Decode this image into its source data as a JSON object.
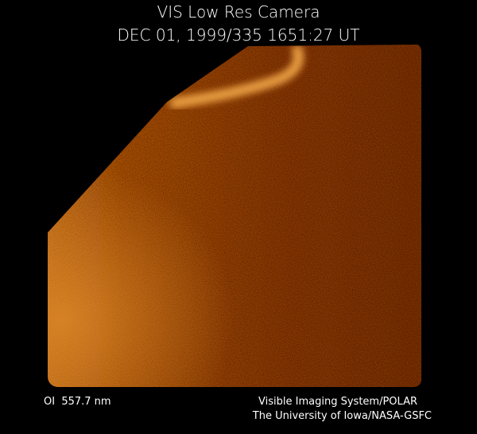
{
  "header": {
    "title": "VIS Low Res Camera",
    "timestamp": "DEC 01, 1999/335 1651:27 UT"
  },
  "footer": {
    "wavelength": "OI  557.7 nm",
    "instrument": "Visible Imaging System/POLAR",
    "institution": "The University of Iowa/NASA-GSFC"
  }
}
